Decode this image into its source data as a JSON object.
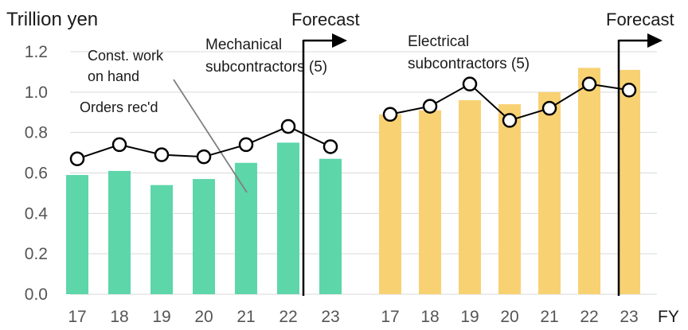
{
  "chart_data": {
    "type": "bar",
    "unit_label": "Trillion yen",
    "x_axis_label": "FY",
    "ylim": [
      0.0,
      1.2
    ],
    "yticks": [
      "0.0",
      "0.2",
      "0.4",
      "0.6",
      "0.8",
      "1.0",
      "1.2"
    ],
    "grid": true,
    "panels": [
      {
        "title": "Mechanical subcontractors (5)",
        "title_lines": [
          "Mechanical",
          "subcontractors (5)"
        ],
        "forecast_label": "Forecast",
        "categories": [
          "17",
          "18",
          "19",
          "20",
          "21",
          "22",
          "23"
        ],
        "series": [
          {
            "name": "Const. work on hand",
            "label_lines": [
              "Const. work",
              "on hand"
            ],
            "type": "bar",
            "color": "#5dd6aa",
            "values": [
              0.59,
              0.61,
              0.54,
              0.57,
              0.65,
              0.75,
              0.67
            ]
          },
          {
            "name": "Orders rec'd",
            "label_lines": [
              "Orders rec'd"
            ],
            "type": "line",
            "color": "#000000",
            "values": [
              0.67,
              0.74,
              0.69,
              0.68,
              0.74,
              0.83,
              0.73
            ]
          }
        ]
      },
      {
        "title": "Electrical subcontractors (5)",
        "title_lines": [
          "Electrical",
          "subcontractors (5)"
        ],
        "forecast_label": "Forecast",
        "categories": [
          "17",
          "18",
          "19",
          "20",
          "21",
          "22",
          "23"
        ],
        "series": [
          {
            "name": "Const. work on hand",
            "type": "bar",
            "color": "#f8d173",
            "values": [
              0.89,
              0.91,
              0.96,
              0.94,
              1.0,
              1.12,
              1.11
            ]
          },
          {
            "name": "Orders rec'd",
            "type": "line",
            "color": "#000000",
            "values": [
              0.89,
              0.93,
              1.04,
              0.86,
              0.92,
              1.04,
              1.01
            ]
          }
        ]
      }
    ]
  }
}
